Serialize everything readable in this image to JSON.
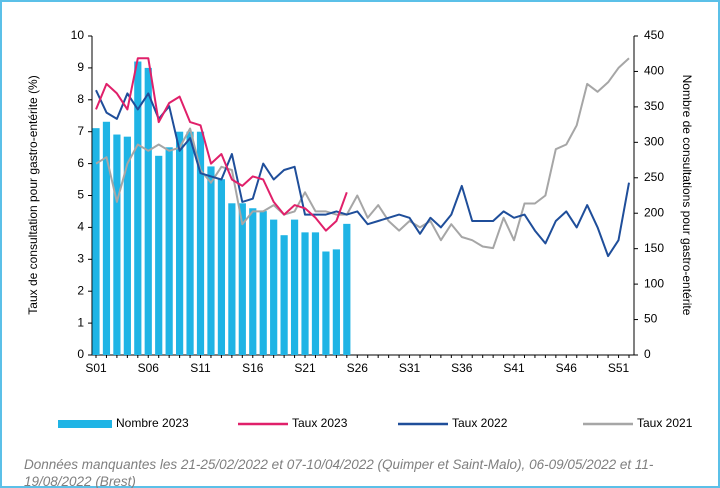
{
  "chart_data": {
    "type": "combo",
    "y_label": "Taux de consultation pour gastro-entérite (%)",
    "y2_label": "Nombre de consultations pour gastro-entérite",
    "categories": [
      "S01",
      null,
      null,
      null,
      null,
      "S06",
      null,
      null,
      null,
      null,
      "S11",
      null,
      null,
      null,
      null,
      "S16",
      null,
      null,
      null,
      null,
      "S21",
      null,
      null,
      null,
      null,
      "S26",
      null,
      null,
      null,
      null,
      "S31",
      null,
      null,
      null,
      null,
      "S36",
      null,
      null,
      null,
      null,
      "S41",
      null,
      null,
      null,
      null,
      "S46",
      null,
      null,
      null,
      null,
      "S51",
      null
    ],
    "ylim": [
      0,
      10
    ],
    "yticks": [
      0,
      1,
      2,
      3,
      4,
      5,
      6,
      7,
      8,
      9,
      10
    ],
    "y2lim": [
      0,
      450
    ],
    "y2ticks": [
      0,
      50,
      100,
      150,
      200,
      250,
      300,
      350,
      400,
      450
    ],
    "grid": false,
    "legend": "bottom",
    "series": [
      {
        "name": "Nombre 2023",
        "type": "bar",
        "axis": "y2",
        "color": "#1fb4e5",
        "values": [
          320,
          329,
          311,
          308,
          414,
          405,
          281,
          293,
          315,
          315,
          315,
          266,
          248,
          214,
          214,
          207,
          203,
          191,
          169,
          191,
          173,
          173,
          146,
          149,
          185,
          null,
          null,
          null,
          null,
          null,
          null,
          null,
          null,
          null,
          null,
          null,
          null,
          null,
          null,
          null,
          null,
          null,
          null,
          null,
          null,
          null,
          null,
          null,
          null,
          null,
          null,
          null
        ]
      },
      {
        "name": "Taux 2023",
        "type": "line",
        "color": "#e0206a",
        "values": [
          7.7,
          8.5,
          8.2,
          7.7,
          9.3,
          9.3,
          7.3,
          7.9,
          8.1,
          7.3,
          7.2,
          6.0,
          6.3,
          5.5,
          5.3,
          5.6,
          5.5,
          4.8,
          4.4,
          4.7,
          4.6,
          4.3,
          3.9,
          4.2,
          5.1,
          null,
          null,
          null,
          null,
          null,
          null,
          null,
          null,
          null,
          null,
          null,
          null,
          null,
          null,
          null,
          null,
          null,
          null,
          null,
          null,
          null,
          null,
          null,
          null,
          null,
          null,
          null
        ]
      },
      {
        "name": "Taux 2022",
        "type": "line",
        "color": "#1f4e9a",
        "values": [
          8.3,
          7.6,
          7.4,
          8.2,
          7.7,
          8.2,
          7.4,
          7.8,
          6.4,
          6.8,
          5.7,
          5.6,
          5.5,
          6.3,
          4.8,
          4.9,
          6.0,
          5.5,
          5.8,
          5.9,
          4.4,
          4.4,
          4.4,
          4.5,
          4.4,
          4.5,
          4.1,
          4.2,
          4.3,
          4.4,
          4.3,
          3.8,
          4.3,
          4.0,
          4.4,
          5.3,
          4.2,
          4.2,
          4.2,
          4.5,
          4.3,
          4.4,
          3.9,
          3.5,
          4.2,
          4.5,
          4.0,
          4.7,
          4.0,
          3.1,
          3.6,
          5.4
        ]
      },
      {
        "name": "Taux 2021",
        "type": "line",
        "color": "#a6a6a6",
        "values": [
          6.0,
          6.2,
          4.8,
          6.0,
          6.6,
          6.4,
          6.6,
          6.4,
          6.5,
          7.1,
          5.8,
          5.4,
          5.9,
          5.8,
          4.1,
          4.5,
          4.5,
          4.7,
          4.4,
          4.5,
          5.1,
          4.5,
          4.5,
          4.4,
          4.4,
          5.0,
          4.3,
          4.7,
          4.2,
          3.9,
          4.2,
          4.0,
          4.2,
          3.6,
          4.1,
          3.7,
          3.6,
          3.4,
          3.35,
          4.3,
          3.6,
          4.75,
          4.75,
          5.0,
          6.45,
          6.6,
          7.2,
          8.5,
          8.25,
          8.55,
          9.0,
          9.3
        ]
      }
    ],
    "note": "Données manquantes les 21-25/02/2022 et 07-10/04/2022 (Quimper et Saint-Malo), 06-09/05/2022 et 11-19/08/2022 (Brest)"
  }
}
